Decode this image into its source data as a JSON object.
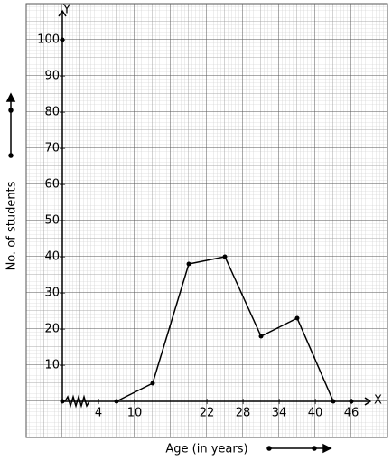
{
  "chart_data": {
    "type": "line",
    "x_label": "Age (in years)",
    "y_label": "No. of students",
    "x_axis_name": "X",
    "y_axis_name": "Y",
    "x": [
      7,
      13,
      19,
      25,
      31,
      37,
      43
    ],
    "values": [
      0,
      5,
      38,
      40,
      18,
      23,
      0
    ],
    "color": "#000000",
    "xlim": [
      -2,
      52
    ],
    "ylim": [
      -10,
      110
    ],
    "xticks": [
      4,
      10,
      22,
      28,
      34,
      40,
      46
    ],
    "yticks": [
      10,
      20,
      30,
      40,
      50,
      60,
      70,
      80,
      90,
      100
    ]
  }
}
